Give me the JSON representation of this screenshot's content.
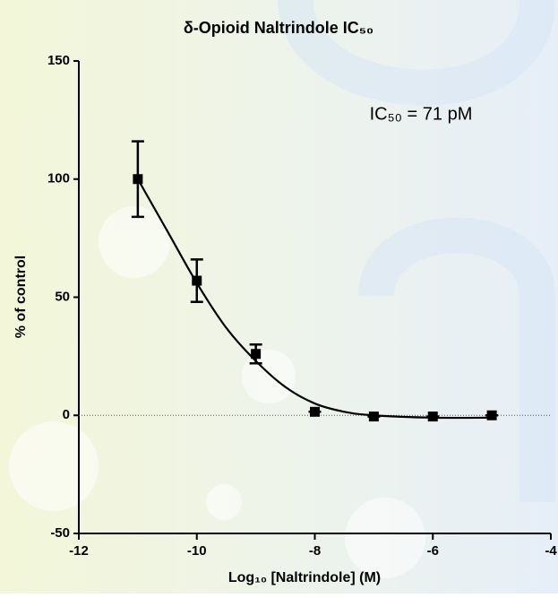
{
  "chart_data": {
    "type": "scatter",
    "title": "δ-Opioid Naltrindole IC₅₀",
    "annotation": "IC₅₀ = 71 pM",
    "x_label": "Log₁₀ [Naltrindole] (M)",
    "y_label": "% of control",
    "x": [
      -11,
      -10,
      -9,
      -8,
      -7,
      -6,
      -5
    ],
    "values": [
      100,
      57,
      26,
      1.5,
      -0.5,
      -0.5,
      0
    ],
    "errors": [
      16,
      9,
      4,
      0,
      0,
      0,
      0
    ],
    "color": "#000000",
    "fit_x": [
      -11,
      -10.5,
      -10,
      -9.5,
      -9,
      -8.5,
      -8,
      -7.5,
      -7,
      -6,
      -5
    ],
    "fit_values": [
      100,
      78,
      56,
      37,
      23,
      12,
      5,
      1.5,
      0,
      -1,
      -1
    ],
    "xlim": [
      -12,
      -4
    ],
    "xticks": [
      -12,
      -10,
      -8,
      -6,
      -4
    ],
    "ylim": [
      -50,
      150
    ],
    "yticks": [
      -50,
      0,
      50,
      100,
      150
    ],
    "zero_line": true
  }
}
